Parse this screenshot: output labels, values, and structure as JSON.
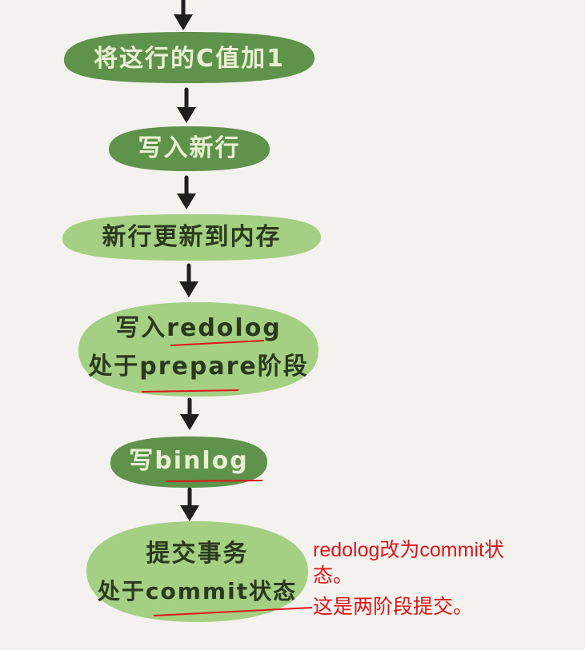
{
  "colors": {
    "background": "#f3f2ee",
    "dark_node": "#5f924a",
    "light_node": "#a5cf83",
    "arrow": "#1f1f1f",
    "annotation": "#e0161a"
  },
  "steps": [
    {
      "text": "将这行的C值加1"
    },
    {
      "text": "写入新行"
    },
    {
      "text": "新行更新到内存"
    },
    {
      "line1": "写入redolog",
      "line2": "处于prepare阶段"
    },
    {
      "text": "写binlog"
    },
    {
      "line1": "提交事务",
      "line2": "处于commit状态"
    }
  ],
  "annotation": {
    "line1": "redolog改为commit状",
    "line2": "态。",
    "line3": "这是两阶段提交。"
  }
}
